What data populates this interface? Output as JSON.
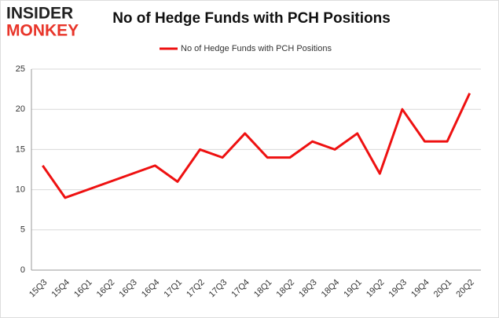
{
  "logo": {
    "top": "INSIDER",
    "bottom": "MONKEY"
  },
  "chart_data": {
    "type": "line",
    "title": "No of Hedge Funds with PCH Positions",
    "categories": [
      "15Q3",
      "15Q4",
      "16Q1",
      "16Q2",
      "16Q3",
      "16Q4",
      "17Q1",
      "17Q2",
      "17Q3",
      "17Q4",
      "18Q1",
      "18Q2",
      "18Q3",
      "18Q4",
      "19Q1",
      "19Q2",
      "19Q3",
      "19Q4",
      "20Q1",
      "20Q2"
    ],
    "series": [
      {
        "name": "No of Hedge Funds with PCH Positions",
        "color": "#ee1111",
        "values": [
          13,
          9,
          10,
          11,
          12,
          13,
          11,
          15,
          14,
          17,
          14,
          14,
          16,
          15,
          17,
          12,
          20,
          16,
          16,
          22
        ]
      }
    ],
    "ylim": [
      0,
      25
    ],
    "yticks": [
      0,
      5,
      10,
      15,
      20,
      25
    ],
    "grid": true,
    "legend": "top"
  }
}
